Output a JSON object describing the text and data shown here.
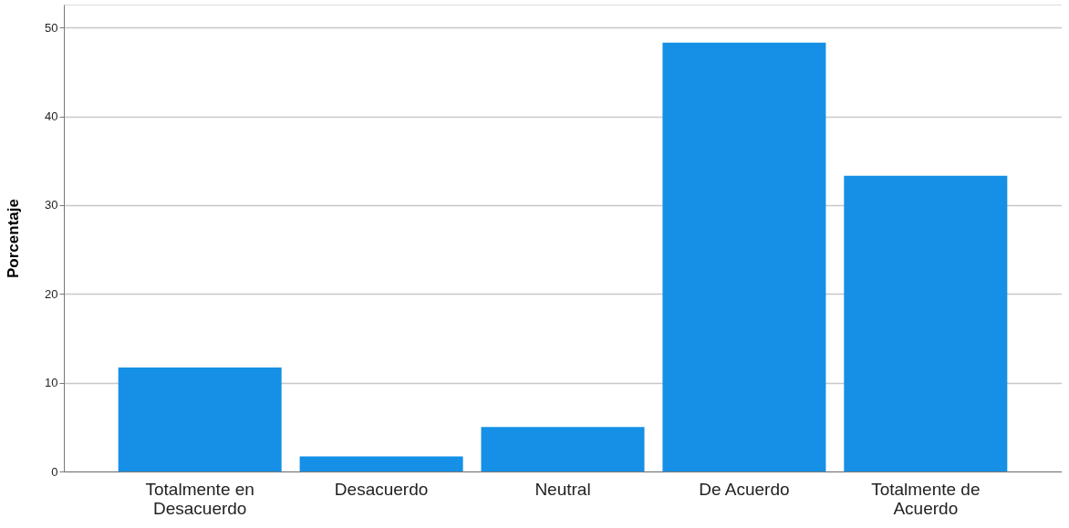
{
  "chart_data": {
    "type": "bar",
    "ylabel": "Porcentaje",
    "categories": [
      "Totalmente en Desacuerdo",
      "Desacuerdo",
      "Neutral",
      "De Acuerdo",
      "Totalmente de Acuerdo"
    ],
    "values": [
      11.7,
      1.7,
      5.0,
      48.3,
      33.3
    ],
    "color": "#1590e6",
    "ylim": [
      0,
      52.6
    ],
    "yticks": [
      0,
      10,
      20,
      30,
      40,
      50
    ],
    "grid": "y"
  }
}
